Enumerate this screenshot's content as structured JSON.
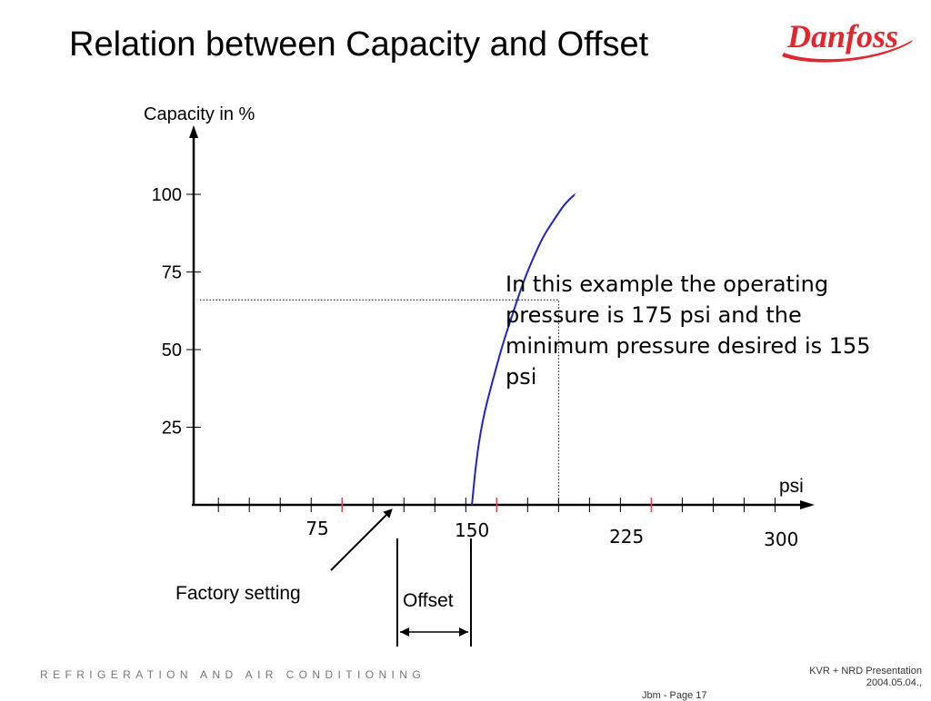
{
  "slide": {
    "title": "Relation between Capacity and Offset",
    "brand": "Danfoss",
    "note": "In this example the operating pressure is 175 psi and the minimum pressure desired is 155 psi",
    "footer_left": "REFRIGERATION AND AIR CONDITIONING",
    "footer_right_line1": "KVR + NRD Presentation",
    "footer_right_line2": "2004.05.04.,",
    "footer_page": "Jbm - Page 17"
  },
  "colors": {
    "curve": "#1f23c8",
    "red_tick": "#e0444c",
    "brand": "#e3262d"
  },
  "chart_data": {
    "type": "line",
    "ylabel": "Capacity in %",
    "xlabel": "psi",
    "y_ticks": [
      25,
      50,
      75,
      100
    ],
    "y_tick_labels": [
      "25",
      "50",
      "75",
      "100"
    ],
    "x_tick_labels": [
      "75",
      "150",
      "225",
      "300"
    ],
    "x_tick_label_values": [
      60,
      135,
      210,
      285
    ],
    "major_tick_step": 75,
    "minor_tick_step": 15,
    "series": [
      {
        "values": [
          [
            135,
            0
          ],
          [
            137,
            14
          ],
          [
            140,
            27
          ],
          [
            145,
            40
          ],
          [
            150,
            52
          ],
          [
            155,
            62
          ],
          [
            160,
            72
          ],
          [
            165,
            80
          ],
          [
            170,
            87
          ],
          [
            175,
            92
          ],
          [
            180,
            97
          ],
          [
            185,
            100
          ]
        ]
      }
    ],
    "guide": {
      "x": 180,
      "y": 66,
      "style": "dotted"
    },
    "annotations": {
      "factory_setting": "Factory setting",
      "offset": "Offset"
    }
  }
}
